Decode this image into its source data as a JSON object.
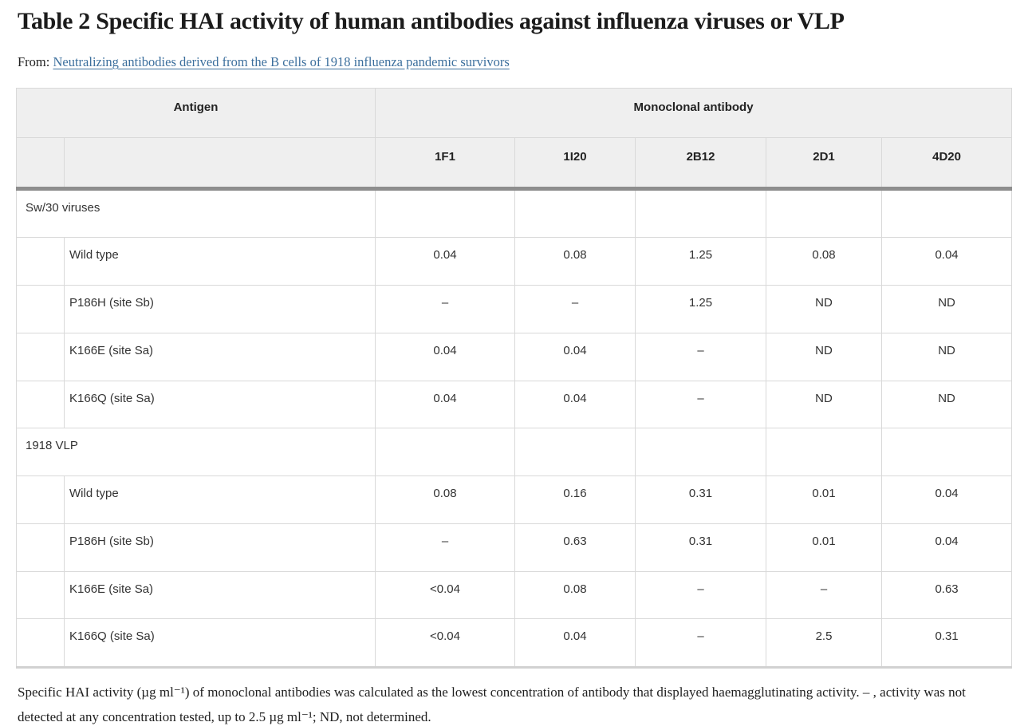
{
  "page": {
    "title": "Table 2 Specific HAI activity of human antibodies against influenza viruses or VLP",
    "from_label": "From:",
    "from_link": "Neutralizing antibodies derived from the B cells of 1918 influenza pandemic survivors"
  },
  "table": {
    "header": {
      "antigen": "Antigen",
      "monoclonal": "Monoclonal antibody",
      "antibodies": [
        "1F1",
        "1I20",
        "2B12",
        "2D1",
        "4D20"
      ]
    },
    "groups": [
      {
        "label": "Sw/30 viruses",
        "rows": [
          {
            "label": "Wild type",
            "values": [
              "0.04",
              "0.08",
              "1.25",
              "0.08",
              "0.04"
            ]
          },
          {
            "label": "P186H (site Sb)",
            "values": [
              "–",
              "–",
              "1.25",
              "ND",
              "ND"
            ]
          },
          {
            "label": "K166E (site Sa)",
            "values": [
              "0.04",
              "0.04",
              "–",
              "ND",
              "ND"
            ]
          },
          {
            "label": "K166Q (site Sa)",
            "values": [
              "0.04",
              "0.04",
              "–",
              "ND",
              "ND"
            ]
          }
        ]
      },
      {
        "label": "1918 VLP",
        "rows": [
          {
            "label": "Wild type",
            "values": [
              "0.08",
              "0.16",
              "0.31",
              "0.01",
              "0.04"
            ]
          },
          {
            "label": "P186H (site Sb)",
            "values": [
              "–",
              "0.63",
              "0.31",
              "0.01",
              "0.04"
            ]
          },
          {
            "label": "K166E (site Sa)",
            "values": [
              "<0.04",
              "0.08",
              "–",
              "–",
              "0.63"
            ]
          },
          {
            "label": "K166Q (site Sa)",
            "values": [
              "<0.04",
              "0.04",
              "–",
              "2.5",
              "0.31"
            ]
          }
        ]
      }
    ],
    "footnote": "Specific HAI activity (µg ml⁻¹) of monoclonal antibodies was calculated as the lowest concentration of antibody that displayed haemagglutinating activity. – , activity was not detected at any concentration tested, up to 2.5 µg ml⁻¹; ND, not determined."
  },
  "colors": {
    "link": "#3c6f9d",
    "header_background": "#efefef",
    "grid_border": "#d9d9d9",
    "header_rule": "#8e8e8e",
    "bottom_rule": "#d2d2d2",
    "body_text": "#333333",
    "title_text": "#1b1b1b"
  }
}
